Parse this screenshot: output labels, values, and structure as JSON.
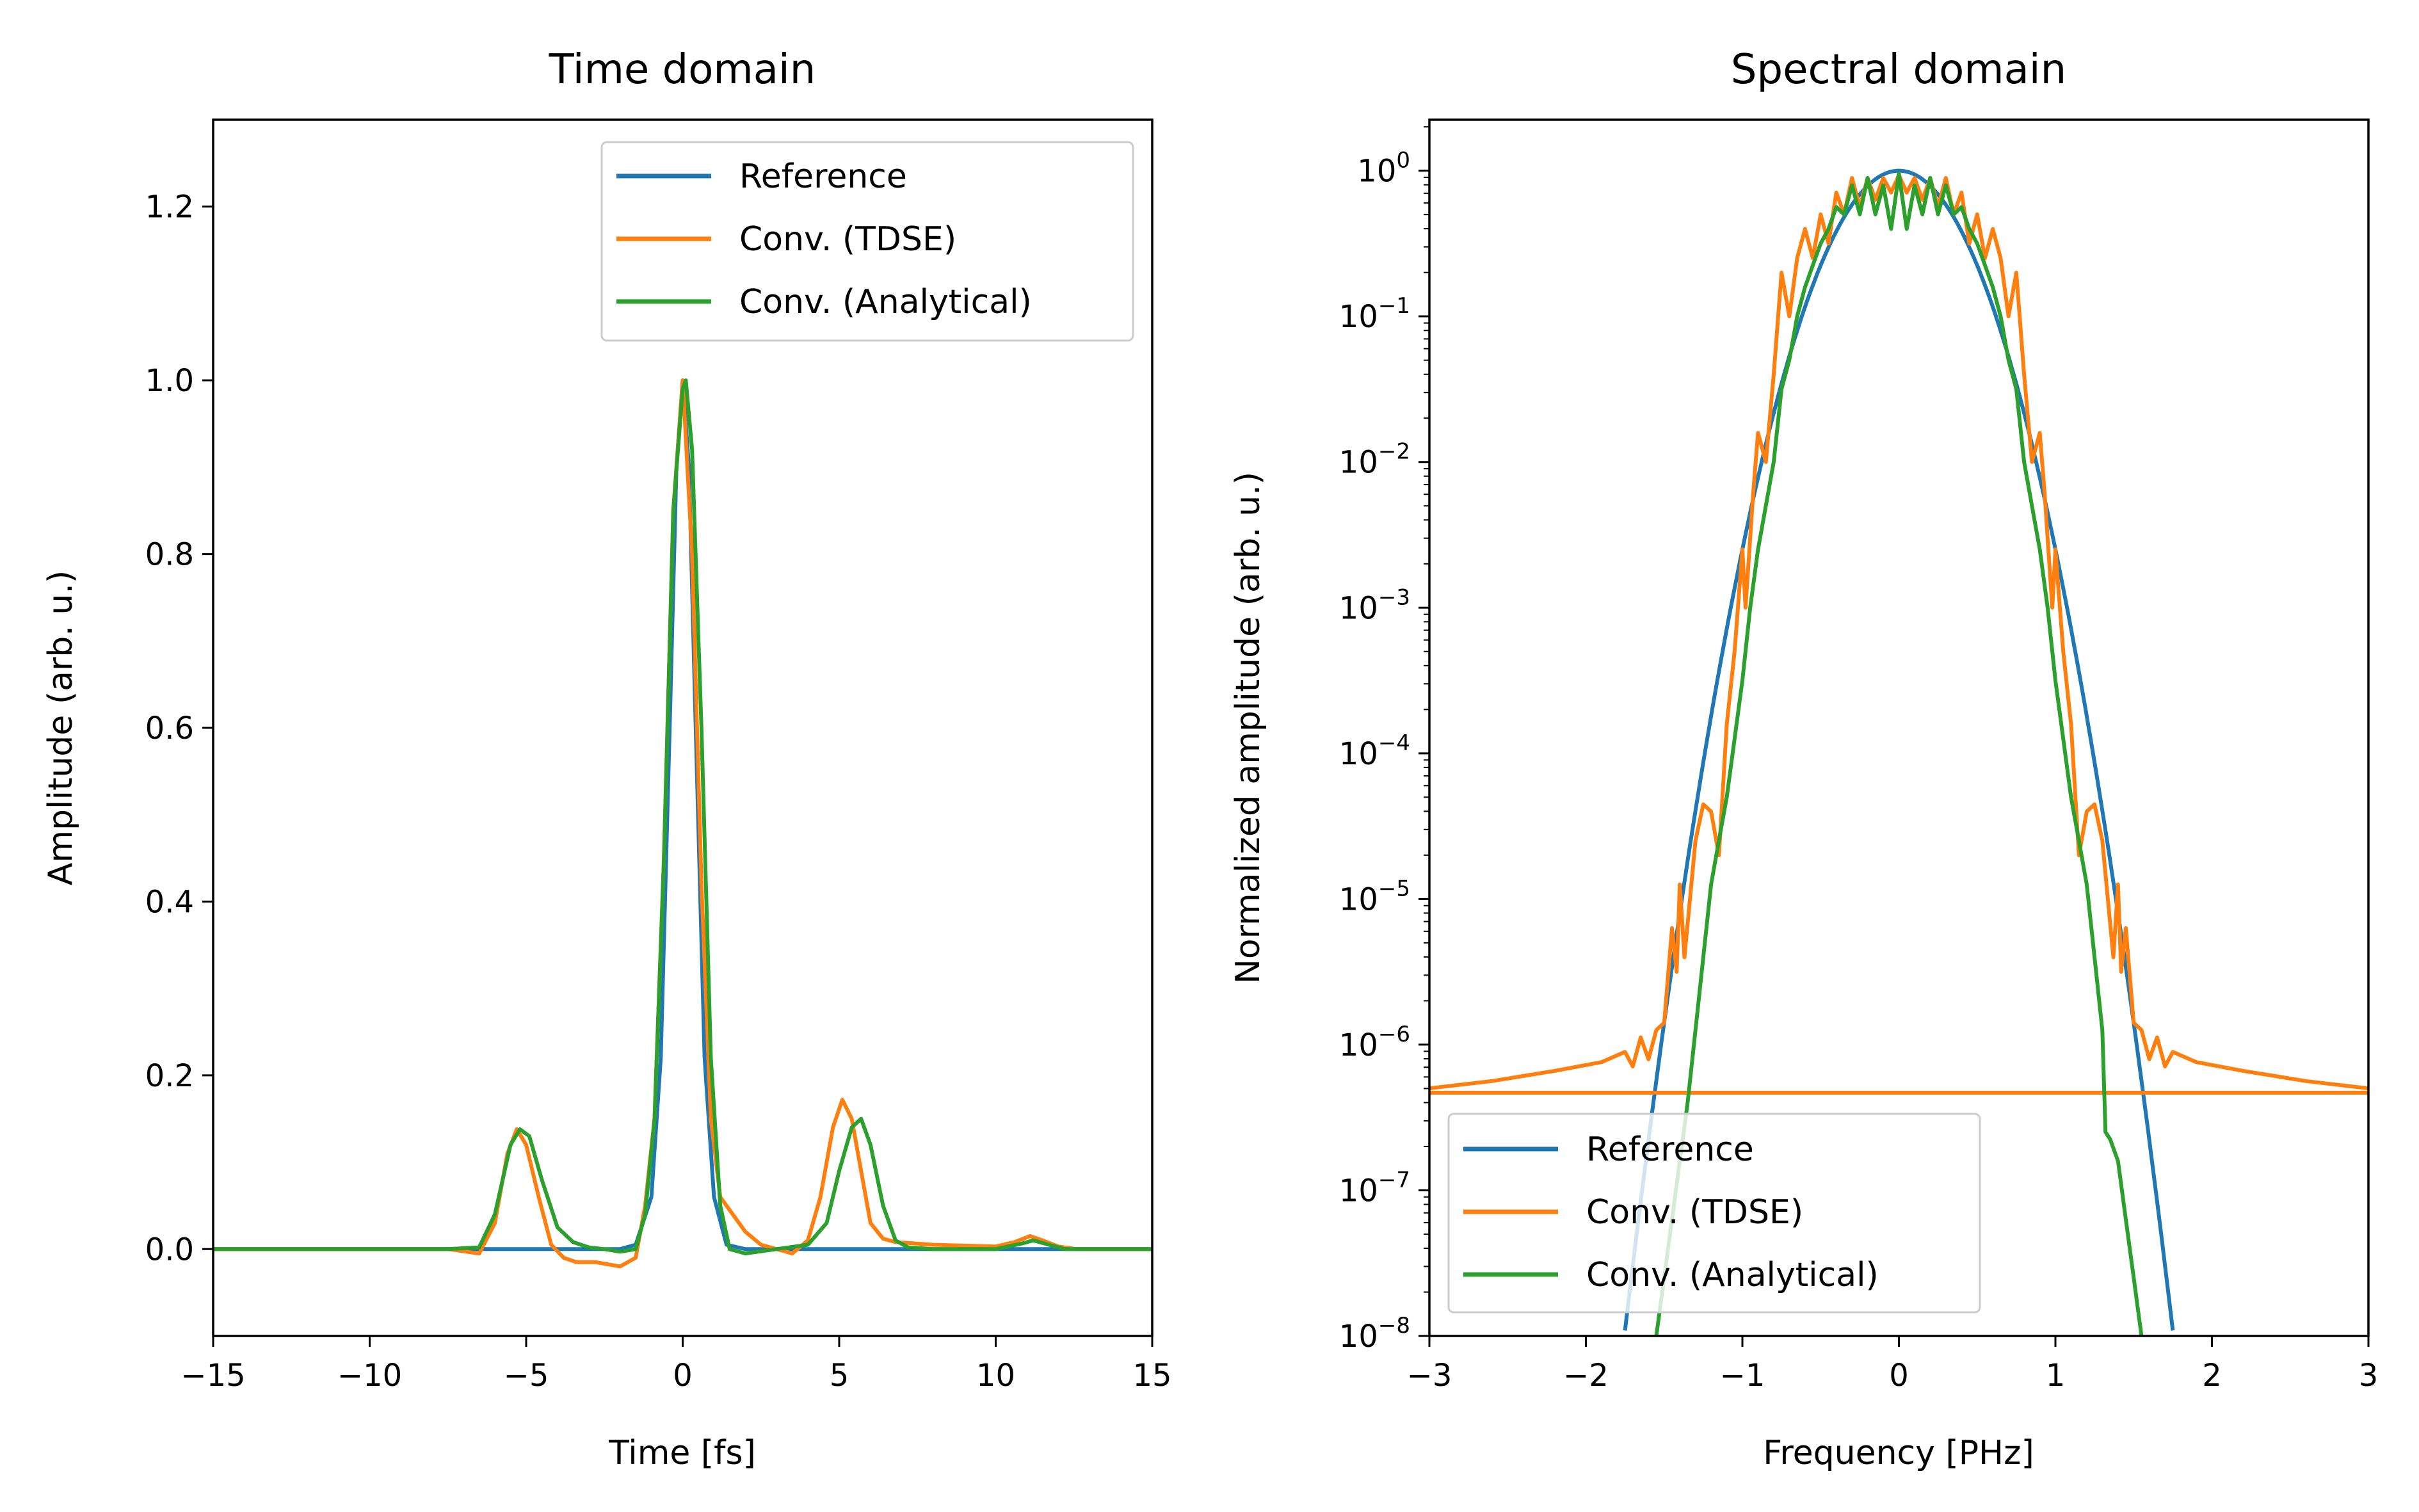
{
  "colors": {
    "reference": "#1f77b4",
    "tdse": "#ff7f0e",
    "analytical": "#2ca02c",
    "legend_border": "#cccccc"
  },
  "chart_data": [
    {
      "type": "line",
      "title": "Time domain",
      "xlabel": "Time [fs]",
      "ylabel": "Amplitude (arb. u.)",
      "xlim": [
        -15,
        15
      ],
      "ylim": [
        -0.1,
        1.3
      ],
      "xscale": "linear",
      "yscale": "linear",
      "xticks": [
        -15,
        -10,
        -5,
        0,
        5,
        10,
        15
      ],
      "xtick_labels": [
        "−15",
        "−10",
        "−5",
        "0",
        "5",
        "10",
        "15"
      ],
      "yticks": [
        0.0,
        0.2,
        0.4,
        0.6,
        0.8,
        1.0,
        1.2
      ],
      "ytick_labels": [
        "0.0",
        "0.2",
        "0.4",
        "0.6",
        "0.8",
        "1.0",
        "1.2"
      ],
      "grid": false,
      "legend_position": "upper right",
      "series": [
        {
          "name": "Reference",
          "color_key": "reference",
          "x": [
            -15,
            -2.0,
            -1.5,
            -1.0,
            -0.7,
            -0.4,
            -0.2,
            0.0,
            0.2,
            0.4,
            0.7,
            1.0,
            1.4,
            2.0,
            15
          ],
          "y": [
            0,
            0,
            0.005,
            0.06,
            0.22,
            0.62,
            0.9,
            1.0,
            0.9,
            0.62,
            0.22,
            0.06,
            0.005,
            0,
            0
          ]
        },
        {
          "name": "Conv. (TDSE)",
          "color_key": "tdse",
          "x": [
            -15,
            -7.5,
            -6.5,
            -6.0,
            -5.6,
            -5.3,
            -5.0,
            -4.6,
            -4.2,
            -3.8,
            -3.4,
            -2.8,
            -2.0,
            -1.5,
            -1.2,
            -0.9,
            -0.6,
            -0.3,
            0.0,
            0.3,
            0.6,
            0.9,
            1.2,
            1.6,
            2.0,
            2.5,
            3.0,
            3.5,
            4.0,
            4.4,
            4.8,
            5.1,
            5.4,
            5.7,
            6.0,
            6.4,
            6.8,
            7.2,
            8.0,
            9.0,
            10.0,
            10.6,
            11.1,
            11.5,
            12.0,
            12.6,
            15
          ],
          "y": [
            0,
            0,
            -0.005,
            0.03,
            0.11,
            0.138,
            0.12,
            0.06,
            0.005,
            -0.01,
            -0.015,
            -0.015,
            -0.02,
            -0.01,
            0.05,
            0.15,
            0.45,
            0.85,
            1.0,
            0.8,
            0.42,
            0.15,
            0.06,
            0.04,
            0.02,
            0.005,
            0,
            -0.005,
            0.01,
            0.06,
            0.14,
            0.172,
            0.15,
            0.09,
            0.03,
            0.012,
            0.008,
            0.007,
            0.005,
            0.004,
            0.003,
            0.008,
            0.015,
            0.01,
            0.003,
            0,
            0
          ]
        },
        {
          "name": "Conv. (Analytical)",
          "color_key": "analytical",
          "x": [
            -15,
            -7.5,
            -6.5,
            -6.0,
            -5.5,
            -5.2,
            -4.9,
            -4.5,
            -4.0,
            -3.5,
            -3.0,
            -2.5,
            -2.0,
            -1.5,
            -1.2,
            -0.9,
            -0.6,
            -0.3,
            0.0,
            0.1,
            0.3,
            0.6,
            0.9,
            1.2,
            1.5,
            2.0,
            3.0,
            4.0,
            4.6,
            5.0,
            5.4,
            5.7,
            6.0,
            6.4,
            6.8,
            7.2,
            8.0,
            10.0,
            10.8,
            11.2,
            11.6,
            12.2,
            15
          ],
          "y": [
            0,
            0,
            0.002,
            0.04,
            0.12,
            0.138,
            0.13,
            0.08,
            0.025,
            0.008,
            0.002,
            0.0,
            -0.003,
            0.0,
            0.04,
            0.15,
            0.45,
            0.85,
            0.99,
            1.0,
            0.92,
            0.6,
            0.22,
            0.05,
            0.0,
            -0.005,
            0.0,
            0.005,
            0.03,
            0.09,
            0.14,
            0.15,
            0.12,
            0.05,
            0.01,
            0.002,
            0.0,
            0.0,
            0.006,
            0.01,
            0.006,
            0.0,
            0
          ]
        }
      ]
    },
    {
      "type": "line",
      "title": "Spectral domain",
      "xlabel": "Frequency [PHz]",
      "ylabel": "Normalized amplitude (arb. u.)",
      "xlim": [
        -3,
        3
      ],
      "ylim_exponent": [
        -8,
        0.35
      ],
      "xscale": "linear",
      "yscale": "log",
      "xticks": [
        -3,
        -2,
        -1,
        0,
        1,
        2,
        3
      ],
      "xtick_labels": [
        "−3",
        "−2",
        "−1",
        "0",
        "1",
        "2",
        "3"
      ],
      "ytick_exponents": [
        0,
        -1,
        -2,
        -3,
        -4,
        -5,
        -6,
        -7,
        -8
      ],
      "ytick_labels": [
        {
          "base": "10",
          "exp": "0"
        },
        {
          "base": "10",
          "exp": "−1"
        },
        {
          "base": "10",
          "exp": "−2"
        },
        {
          "base": "10",
          "exp": "−3"
        },
        {
          "base": "10",
          "exp": "−4"
        },
        {
          "base": "10",
          "exp": "−5"
        },
        {
          "base": "10",
          "exp": "−6"
        },
        {
          "base": "10",
          "exp": "−7"
        },
        {
          "base": "10",
          "exp": "−8"
        }
      ],
      "grid": false,
      "legend_position": "lower left",
      "series": [
        {
          "name": "Reference",
          "color_key": "reference",
          "model": "gaussian_log10",
          "peak_log10": 0,
          "curvature": 2.6,
          "x_range": [
            -1.75,
            1.75
          ]
        },
        {
          "name": "Conv. (TDSE)",
          "color_key": "tdse",
          "x": [
            -3.0,
            -2.6,
            -2.2,
            -1.9,
            -1.75,
            -1.7,
            -1.65,
            -1.6,
            -1.55,
            -1.5,
            -1.45,
            -1.42,
            -1.4,
            -1.37,
            -1.3,
            -1.25,
            -1.2,
            -1.15,
            -1.1,
            -1.05,
            -1.0,
            -0.98,
            -0.93,
            -0.9,
            -0.85,
            -0.8,
            -0.75,
            -0.7,
            -0.65,
            -0.6,
            -0.55,
            -0.5,
            -0.45,
            -0.4,
            -0.35,
            -0.3,
            -0.25,
            -0.2,
            -0.15,
            -0.1,
            -0.05,
            0.0,
            0.05,
            0.1,
            0.15,
            0.2,
            0.25,
            0.3,
            0.35,
            0.4,
            0.45,
            0.5,
            0.55,
            0.6,
            0.65,
            0.7,
            0.75,
            0.8,
            0.85,
            0.9,
            0.93,
            0.98,
            1.0,
            1.05,
            1.1,
            1.15,
            1.2,
            1.25,
            1.3,
            1.37,
            1.4,
            1.42,
            1.45,
            1.5,
            1.55,
            1.6,
            1.65,
            1.7,
            1.75,
            1.9,
            2.2,
            2.6,
            3.0
          ],
          "y_log10": [
            -6.3,
            -6.25,
            -6.18,
            -6.12,
            -6.05,
            -6.15,
            -5.95,
            -6.1,
            -5.9,
            -5.85,
            -5.2,
            -5.5,
            -4.9,
            -5.4,
            -4.6,
            -4.35,
            -4.4,
            -4.7,
            -3.8,
            -3.3,
            -2.6,
            -3.0,
            -2.2,
            -1.8,
            -2.0,
            -1.4,
            -0.7,
            -1.0,
            -0.6,
            -0.4,
            -0.6,
            -0.3,
            -0.5,
            -0.15,
            -0.3,
            -0.05,
            -0.25,
            -0.05,
            -0.2,
            -0.05,
            -0.15,
            -0.03,
            -0.15,
            -0.05,
            -0.2,
            -0.05,
            -0.25,
            -0.05,
            -0.3,
            -0.15,
            -0.5,
            -0.3,
            -0.6,
            -0.4,
            -0.6,
            -1.0,
            -0.7,
            -1.4,
            -2.0,
            -1.8,
            -2.2,
            -3.0,
            -2.6,
            -3.3,
            -3.8,
            -4.7,
            -4.4,
            -4.35,
            -4.6,
            -5.4,
            -4.9,
            -5.5,
            -5.2,
            -5.85,
            -5.9,
            -6.1,
            -5.95,
            -6.15,
            -6.05,
            -6.12,
            -6.18,
            -6.25,
            -6.3
          ]
        },
        {
          "name": "Conv. (TDSE) floor",
          "color_key": "tdse",
          "x": [
            -3.0,
            3.0
          ],
          "y_log10": [
            -6.33,
            -6.33
          ]
        },
        {
          "name": "Conv. (Analytical)",
          "color_key": "analytical",
          "x": [
            -1.55,
            -1.5,
            -1.45,
            -1.4,
            -1.35,
            -1.3,
            -1.25,
            -1.2,
            -1.15,
            -1.1,
            -1.05,
            -1.0,
            -0.95,
            -0.9,
            -0.85,
            -0.8,
            -0.75,
            -0.7,
            -0.65,
            -0.6,
            -0.55,
            -0.5,
            -0.45,
            -0.4,
            -0.35,
            -0.3,
            -0.25,
            -0.2,
            -0.15,
            -0.1,
            -0.05,
            0.0,
            0.05,
            0.1,
            0.15,
            0.2,
            0.25,
            0.3,
            0.35,
            0.4,
            0.45,
            0.5,
            0.55,
            0.6,
            0.65,
            0.7,
            0.75,
            0.8,
            0.85,
            0.9,
            0.95,
            1.0,
            1.05,
            1.1,
            1.15,
            1.2,
            1.25,
            1.3,
            1.32,
            1.35,
            1.4,
            1.45,
            1.5,
            1.55
          ],
          "y_log10": [
            -8.0,
            -7.6,
            -7.2,
            -6.8,
            -6.4,
            -5.9,
            -5.4,
            -4.9,
            -4.6,
            -4.3,
            -3.9,
            -3.5,
            -3.0,
            -2.6,
            -2.3,
            -2.0,
            -1.5,
            -1.3,
            -1.0,
            -0.8,
            -0.65,
            -0.5,
            -0.4,
            -0.25,
            -0.3,
            -0.1,
            -0.3,
            -0.05,
            -0.3,
            -0.1,
            -0.4,
            -0.02,
            -0.4,
            -0.1,
            -0.3,
            -0.05,
            -0.3,
            -0.1,
            -0.3,
            -0.25,
            -0.4,
            -0.5,
            -0.65,
            -0.8,
            -1.0,
            -1.3,
            -1.5,
            -2.0,
            -2.3,
            -2.6,
            -3.0,
            -3.5,
            -3.9,
            -4.3,
            -4.6,
            -4.9,
            -5.4,
            -5.9,
            -6.6,
            -6.65,
            -6.8,
            -7.2,
            -7.6,
            -8.0
          ]
        }
      ]
    }
  ]
}
